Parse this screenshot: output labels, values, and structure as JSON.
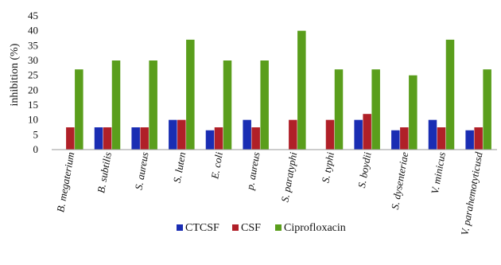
{
  "chart_data": {
    "type": "bar",
    "ylabel": "inhibition (%)",
    "ylim": [
      0,
      45
    ],
    "yticks": [
      0,
      5,
      10,
      15,
      20,
      25,
      30,
      35,
      40,
      45
    ],
    "grid": false,
    "legend_position": "bottom",
    "categories": [
      "B. megaterium",
      "B. subtilis",
      "S. aureus",
      "S. luten",
      "E. coli",
      "p. aureus",
      "S. paratyphi",
      "S. typhi",
      "S. boydii",
      "S. dysenteriae",
      "V. minicus",
      "V. parahemotyticusd"
    ],
    "series": [
      {
        "name": "CTCSF",
        "color": "#1a2db3",
        "values": [
          0,
          7.5,
          7.5,
          10,
          6.5,
          10,
          0,
          0,
          10,
          6.5,
          10,
          6.5
        ]
      },
      {
        "name": "CSF",
        "color": "#b02028",
        "values": [
          7.5,
          7.5,
          7.5,
          10,
          7.5,
          7.5,
          10,
          10,
          12,
          7.5,
          7.5,
          7.5
        ]
      },
      {
        "name": "Ciprofloxacin",
        "color": "#5a9e1c",
        "values": [
          27,
          30,
          30,
          37,
          30,
          30,
          40,
          27,
          27,
          25,
          37,
          27
        ]
      }
    ]
  }
}
